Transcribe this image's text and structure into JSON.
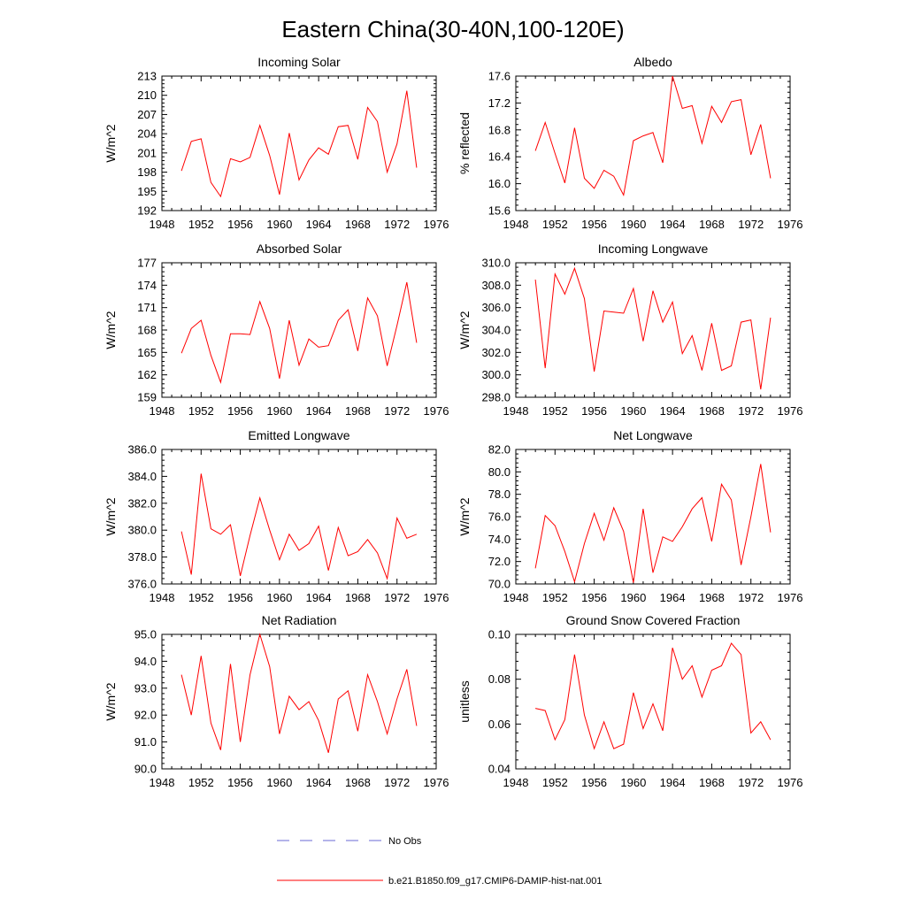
{
  "figure_title": "Eastern China(30-40N,100-120E)",
  "legend": {
    "obs": {
      "label": "No Obs",
      "color": "#6a6ad4"
    },
    "model": {
      "label": "b.e21.B1850.f09_g17.CMIP6-DAMIP-hist-nat.001",
      "color": "#ff0000"
    }
  },
  "x_axis": {
    "range": [
      1948,
      1976
    ],
    "ticks": [
      "1948",
      "1952",
      "1956",
      "1960",
      "1964",
      "1968",
      "1972",
      "1976"
    ]
  },
  "chart_data": [
    {
      "type": "line",
      "title": "Incoming Solar",
      "ylabel": "W/m^2",
      "ylim": [
        192,
        213
      ],
      "yticks": [
        "192",
        "195",
        "198",
        "201",
        "204",
        "207",
        "210",
        "213"
      ],
      "x": [
        1950,
        1951,
        1952,
        1953,
        1954,
        1955,
        1956,
        1957,
        1958,
        1959,
        1960,
        1961,
        1962,
        1963,
        1964,
        1965,
        1966,
        1967,
        1968,
        1969,
        1970,
        1971,
        1972,
        1973,
        1974
      ],
      "series": [
        {
          "values": [
            198.2,
            202.8,
            203.2,
            196.4,
            194.2,
            200.1,
            199.6,
            200.3,
            205.3,
            200.6,
            194.5,
            204.1,
            196.8,
            199.9,
            201.8,
            200.8,
            205.1,
            205.3,
            200.0,
            208.1,
            205.9,
            198.0,
            202.4,
            210.7,
            198.7
          ]
        }
      ]
    },
    {
      "type": "line",
      "title": "Albedo",
      "ylabel": "% reflected",
      "ylim": [
        15.6,
        17.6
      ],
      "yticks": [
        "15.6",
        "16.0",
        "16.4",
        "16.8",
        "17.2",
        "17.6"
      ],
      "x": [
        1950,
        1951,
        1952,
        1953,
        1954,
        1955,
        1956,
        1957,
        1958,
        1959,
        1960,
        1961,
        1962,
        1963,
        1964,
        1965,
        1966,
        1967,
        1968,
        1969,
        1970,
        1971,
        1972,
        1973,
        1974
      ],
      "series": [
        {
          "values": [
            16.49,
            16.91,
            16.45,
            16.01,
            16.83,
            16.08,
            15.93,
            16.2,
            16.11,
            15.83,
            16.64,
            16.71,
            16.76,
            16.31,
            17.6,
            17.12,
            17.16,
            16.6,
            17.15,
            16.91,
            17.22,
            17.25,
            16.43,
            16.88,
            16.08
          ]
        }
      ]
    },
    {
      "type": "line",
      "title": "Absorbed Solar",
      "ylabel": "W/m^2",
      "ylim": [
        159,
        177
      ],
      "yticks": [
        "159",
        "162",
        "165",
        "168",
        "171",
        "174",
        "177"
      ],
      "x": [
        1950,
        1951,
        1952,
        1953,
        1954,
        1955,
        1956,
        1957,
        1958,
        1959,
        1960,
        1961,
        1962,
        1963,
        1964,
        1965,
        1966,
        1967,
        1968,
        1969,
        1970,
        1971,
        1972,
        1973,
        1974
      ],
      "series": [
        {
          "values": [
            164.9,
            168.2,
            169.3,
            164.6,
            161.0,
            167.5,
            167.5,
            167.4,
            171.8,
            168.2,
            161.5,
            169.3,
            163.3,
            166.8,
            165.7,
            165.9,
            169.3,
            170.7,
            165.2,
            172.3,
            169.9,
            163.2,
            168.6,
            174.4,
            166.3
          ]
        }
      ]
    },
    {
      "type": "line",
      "title": "Incoming Longwave",
      "ylabel": "W/m^2",
      "ylim": [
        298.0,
        310.0
      ],
      "yticks": [
        "298.0",
        "300.0",
        "302.0",
        "304.0",
        "306.0",
        "308.0",
        "310.0"
      ],
      "x": [
        1950,
        1951,
        1952,
        1953,
        1954,
        1955,
        1956,
        1957,
        1958,
        1959,
        1960,
        1961,
        1962,
        1963,
        1964,
        1965,
        1966,
        1967,
        1968,
        1969,
        1970,
        1971,
        1972,
        1973,
        1974
      ],
      "series": [
        {
          "values": [
            308.5,
            300.6,
            309.0,
            307.2,
            309.5,
            306.8,
            300.3,
            305.7,
            305.6,
            305.5,
            307.7,
            303.0,
            307.5,
            304.7,
            306.5,
            301.9,
            303.5,
            300.4,
            304.6,
            300.4,
            300.8,
            304.7,
            304.9,
            298.7,
            305.1
          ]
        }
      ]
    },
    {
      "type": "line",
      "title": "Emitted Longwave",
      "ylabel": "W/m^2",
      "ylim": [
        376.0,
        386.0
      ],
      "yticks": [
        "376.0",
        "378.0",
        "380.0",
        "382.0",
        "384.0",
        "386.0"
      ],
      "x": [
        1950,
        1951,
        1952,
        1953,
        1954,
        1955,
        1956,
        1957,
        1958,
        1959,
        1960,
        1961,
        1962,
        1963,
        1964,
        1965,
        1966,
        1967,
        1968,
        1969,
        1970,
        1971,
        1972,
        1973,
        1974
      ],
      "series": [
        {
          "values": [
            379.9,
            376.7,
            384.2,
            380.1,
            379.7,
            380.4,
            376.6,
            379.6,
            382.4,
            380.0,
            377.8,
            379.7,
            378.5,
            379.0,
            380.3,
            377.0,
            380.2,
            378.1,
            378.4,
            379.3,
            378.3,
            376.4,
            380.9,
            379.4,
            379.7
          ]
        }
      ]
    },
    {
      "type": "line",
      "title": "Net Longwave",
      "ylabel": "W/m^2",
      "ylim": [
        70.0,
        82.0
      ],
      "yticks": [
        "70.0",
        "72.0",
        "74.0",
        "76.0",
        "78.0",
        "80.0",
        "82.0"
      ],
      "x": [
        1950,
        1951,
        1952,
        1953,
        1954,
        1955,
        1956,
        1957,
        1958,
        1959,
        1960,
        1961,
        1962,
        1963,
        1964,
        1965,
        1966,
        1967,
        1968,
        1969,
        1970,
        1971,
        1972,
        1973,
        1974
      ],
      "series": [
        {
          "values": [
            71.4,
            76.1,
            75.2,
            72.9,
            70.2,
            73.6,
            76.3,
            73.9,
            76.8,
            74.7,
            70.1,
            76.7,
            71.0,
            74.2,
            73.8,
            75.1,
            76.7,
            77.7,
            73.8,
            78.9,
            77.5,
            71.7,
            76.0,
            80.7,
            74.6
          ]
        }
      ]
    },
    {
      "type": "line",
      "title": "Net Radiation",
      "ylabel": "W/m^2",
      "ylim": [
        90.0,
        95.0
      ],
      "yticks": [
        "90.0",
        "91.0",
        "92.0",
        "93.0",
        "94.0",
        "95.0"
      ],
      "x": [
        1950,
        1951,
        1952,
        1953,
        1954,
        1955,
        1956,
        1957,
        1958,
        1959,
        1960,
        1961,
        1962,
        1963,
        1964,
        1965,
        1966,
        1967,
        1968,
        1969,
        1970,
        1971,
        1972,
        1973,
        1974
      ],
      "series": [
        {
          "values": [
            93.5,
            92.0,
            94.2,
            91.7,
            90.7,
            93.9,
            91.0,
            93.5,
            95.0,
            93.8,
            91.3,
            92.7,
            92.2,
            92.5,
            91.8,
            90.6,
            92.6,
            92.9,
            91.4,
            93.5,
            92.5,
            91.3,
            92.6,
            93.7,
            91.6
          ]
        }
      ]
    },
    {
      "type": "line",
      "title": "Ground Snow Covered Fraction",
      "ylabel": "unitless",
      "ylim": [
        0.04,
        0.1
      ],
      "yticks": [
        "0.04",
        "0.06",
        "0.08",
        "0.10"
      ],
      "x": [
        1950,
        1951,
        1952,
        1953,
        1954,
        1955,
        1956,
        1957,
        1958,
        1959,
        1960,
        1961,
        1962,
        1963,
        1964,
        1965,
        1966,
        1967,
        1968,
        1969,
        1970,
        1971,
        1972,
        1973,
        1974
      ],
      "series": [
        {
          "values": [
            0.067,
            0.066,
            0.053,
            0.062,
            0.091,
            0.064,
            0.049,
            0.061,
            0.049,
            0.051,
            0.074,
            0.058,
            0.069,
            0.057,
            0.094,
            0.08,
            0.086,
            0.072,
            0.084,
            0.086,
            0.096,
            0.091,
            0.056,
            0.061,
            0.053
          ]
        }
      ]
    }
  ]
}
